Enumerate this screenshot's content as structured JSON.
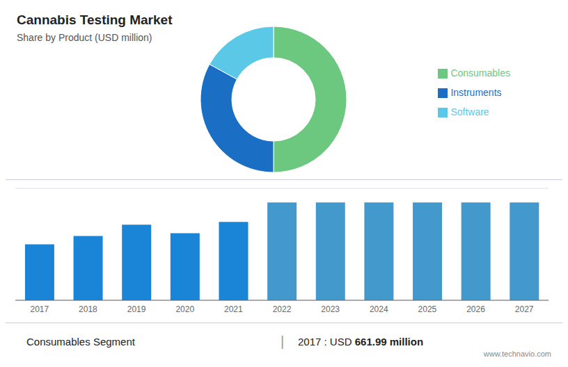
{
  "chart_data": [
    {
      "type": "pie",
      "title": "Cannabis Testing Market",
      "subtitle": "Share by Product (USD million)",
      "categories": [
        "Consumables",
        "Instruments",
        "Software"
      ],
      "values": [
        50,
        33,
        17
      ],
      "colors": [
        "#6cc87e",
        "#1a6ec4",
        "#5bc8e8"
      ],
      "legend": "right"
    },
    {
      "type": "bar",
      "categories": [
        "2017",
        "2018",
        "2019",
        "2020",
        "2021",
        "2022",
        "2023",
        "2024",
        "2025",
        "2026",
        "2027"
      ],
      "values": [
        100,
        115,
        135,
        120,
        140,
        175,
        175,
        175,
        175,
        175,
        175
      ],
      "colors": [
        "#1a85d6",
        "#1a85d6",
        "#1a85d6",
        "#1a85d6",
        "#1a85d6",
        "#4499cc",
        "#4499cc",
        "#4499cc",
        "#4499cc",
        "#4499cc",
        "#4499cc"
      ],
      "ylim": [
        0,
        200
      ],
      "yticks": [
        0,
        40,
        80,
        120,
        160,
        200
      ],
      "grid": true,
      "tick_labels": "x",
      "annotations": [
        "Consumables Segment",
        "|",
        "2017 : USD ",
        "661.99 million",
        "www.technavio.com"
      ]
    }
  ]
}
